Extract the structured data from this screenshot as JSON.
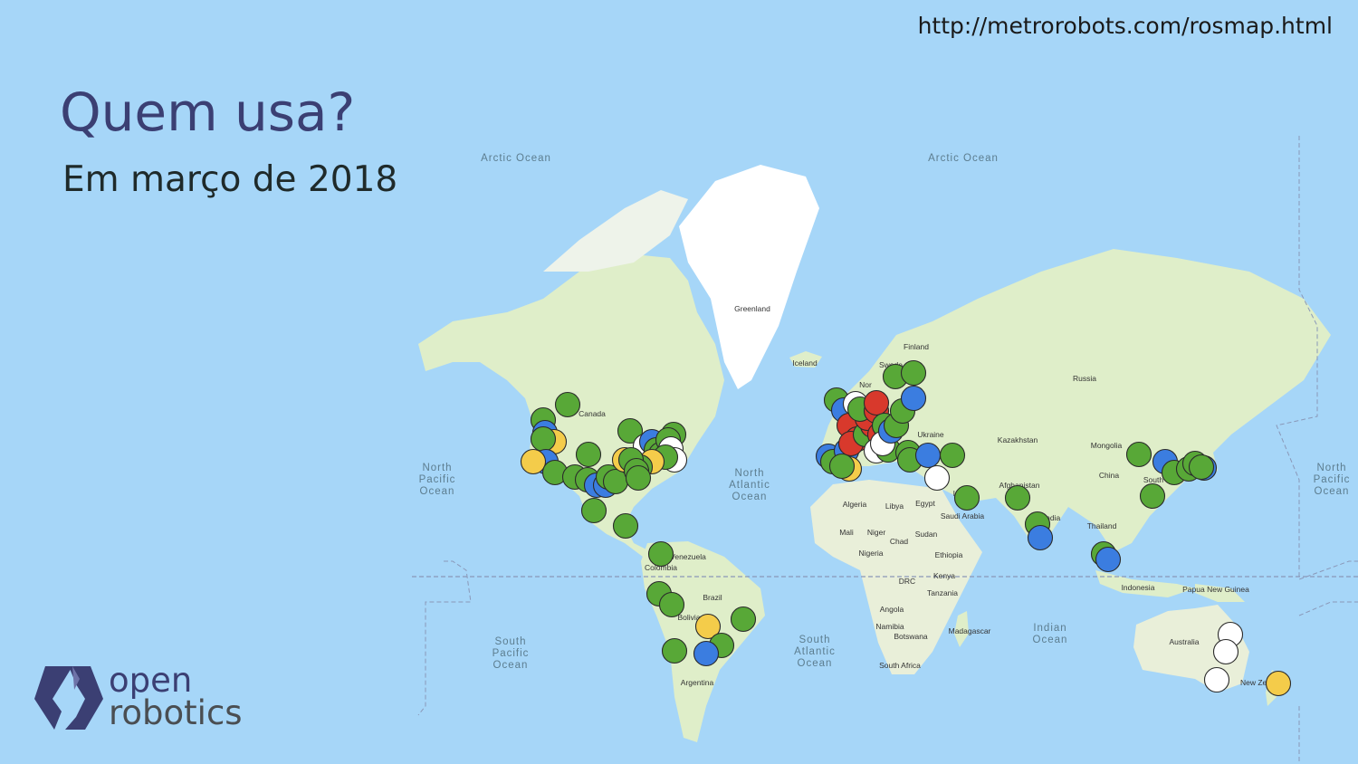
{
  "source_url": "http://metrorobots.com/rosmap.html",
  "title": "Quem usa?",
  "subtitle": "Em março de 2018",
  "logo": {
    "line1": "open",
    "line2": "robotics",
    "icon": "open-robotics-logo-icon"
  },
  "colors": {
    "ocean": "#a6d6f8",
    "land": "#dfeec9",
    "ice": "#ffffff",
    "title": "#3b3f73",
    "marker_green": "#58a837",
    "marker_blue": "#3b7de0",
    "marker_red": "#d8392c",
    "marker_yellow": "#f4cc4a",
    "marker_white": "#ffffff"
  },
  "map_labels": {
    "oceans": [
      "Arctic Ocean",
      "Arctic Ocean",
      "North Pacific Ocean",
      "North Atlantic Ocean",
      "North Pacific Ocean",
      "South Pacific Ocean",
      "South Atlantic Ocean",
      "Indian Ocean"
    ],
    "places": [
      "Greenland",
      "Iceland",
      "Finland",
      "Swede",
      "Nor",
      "Canada",
      "Russia",
      "Ukraine",
      "Kazakhstan",
      "Mongolia",
      "China",
      "South",
      "Iran",
      "Afghanistan",
      "India",
      "Saudi Arabia",
      "Egypt",
      "Algeria",
      "Libya",
      "Mali",
      "Niger",
      "Chad",
      "Sudan",
      "Ethiopia",
      "Nigeria",
      "Kenya",
      "DRC",
      "Tanzania",
      "Angola",
      "Namibia",
      "Botswana",
      "Madagascar",
      "South Africa",
      "Thailand",
      "Indonesia",
      "Papua New Guinea",
      "Australia",
      "New Zealand",
      "Venezuela",
      "Colombia",
      "Brazil",
      "Bolivia",
      "Argentina"
    ]
  }
}
